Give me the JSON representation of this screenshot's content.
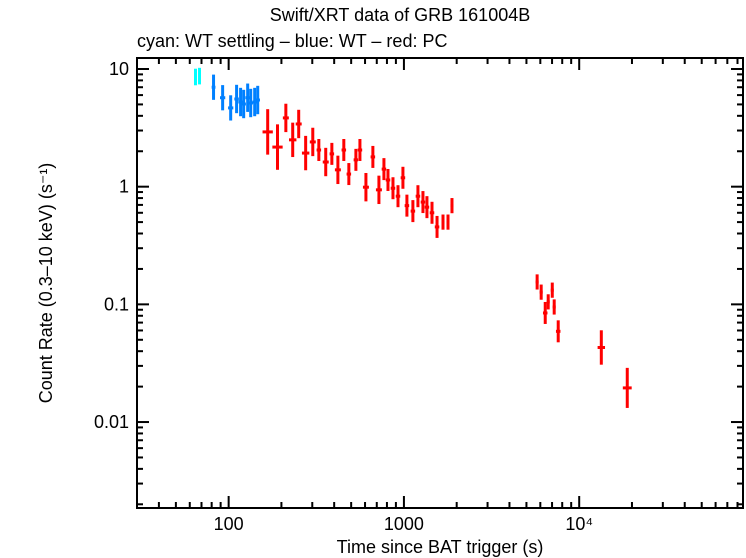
{
  "chart_data": {
    "type": "scatter",
    "title": "Swift/XRT data of GRB 161004B",
    "subtitle": "cyan: WT settling – blue: WT – red: PC",
    "xlabel": "Time since BAT trigger (s)",
    "ylabel": "Count Rate (0.3–10 keV) (s⁻¹)",
    "xscale": "log",
    "yscale": "log",
    "xlim": [
      30,
      86000
    ],
    "ylim": [
      0.00186,
      12.4
    ],
    "grid": false,
    "x_ticks": [
      {
        "value": 100,
        "label": "100"
      },
      {
        "value": 1000,
        "label": "1000"
      },
      {
        "value": 10000,
        "label": "10⁴"
      }
    ],
    "y_ticks": [
      {
        "value": 10,
        "label": "10"
      },
      {
        "value": 1,
        "label": "1"
      },
      {
        "value": 0.1,
        "label": "0.1"
      },
      {
        "value": 0.01,
        "label": "0.01"
      }
    ],
    "series": [
      {
        "mode": "WT settling",
        "color": "#00ffff",
        "points": [
          [
            64.7,
            8.55,
            1.3,
            2.2
          ],
          [
            68.2,
            8.7,
            1.3,
            2.2
          ]
        ]
      },
      {
        "mode": "WT",
        "color": "#0080ff",
        "points": [
          [
            82,
            7.0,
            2.5,
            3.5
          ],
          [
            92.4,
            5.7,
            3.5,
            3.5
          ],
          [
            102.7,
            4.67,
            3.5,
            3.5
          ],
          [
            111,
            5.56,
            3,
            4
          ],
          [
            117,
            5.24,
            3,
            4
          ],
          [
            121.8,
            5.04,
            3,
            4
          ],
          [
            128.4,
            5.7,
            3,
            4
          ],
          [
            133.6,
            5.14,
            3,
            4
          ],
          [
            140.8,
            5.24,
            3,
            4
          ],
          [
            146.5,
            5.45,
            3,
            4
          ]
        ]
      },
      {
        "mode": "PC",
        "color": "#ff0000",
        "points": [
          [
            167,
            2.92,
            7,
            7
          ],
          [
            190,
            2.17,
            7,
            7
          ],
          [
            212,
            3.84,
            4,
            4
          ],
          [
            232,
            2.5,
            5,
            5
          ],
          [
            251,
            3.41,
            4,
            4
          ],
          [
            275,
            1.93,
            5,
            5
          ],
          [
            302,
            2.4,
            4,
            4
          ],
          [
            327,
            2.05,
            3,
            3
          ],
          [
            358,
            1.62,
            4,
            4
          ],
          [
            388,
            1.9,
            3,
            3
          ],
          [
            420,
            1.39,
            4,
            4
          ],
          [
            454,
            2.05,
            3,
            3
          ],
          [
            485,
            1.28,
            3,
            3
          ],
          [
            532,
            1.69,
            3,
            3
          ],
          [
            561,
            2.05,
            3,
            3
          ],
          [
            607,
            0.99,
            4,
            4
          ],
          [
            665,
            1.79,
            3,
            3
          ],
          [
            720,
            0.94,
            4,
            4
          ],
          [
            769,
            1.41,
            3,
            3
          ],
          [
            811,
            1.14,
            3,
            3
          ],
          [
            866,
            0.97,
            3,
            3
          ],
          [
            925,
            0.83,
            3,
            3
          ],
          [
            987,
            1.19,
            3,
            3
          ],
          [
            1040,
            0.69,
            3,
            3
          ],
          [
            1125,
            0.62,
            3,
            3
          ],
          [
            1202,
            0.83,
            3,
            3
          ],
          [
            1284,
            0.74,
            3,
            3
          ],
          [
            1353,
            0.67,
            3,
            3
          ],
          [
            1446,
            0.6,
            3,
            3
          ],
          [
            1545,
            0.455,
            3,
            3
          ],
          [
            1671,
            0.5,
            2,
            2
          ],
          [
            1784,
            0.5,
            2,
            2
          ],
          [
            1880,
            0.69,
            2,
            2
          ],
          [
            5754,
            0.155,
            2,
            2
          ],
          [
            6068,
            0.127,
            2,
            2
          ],
          [
            6400,
            0.0845,
            3,
            3
          ],
          [
            6655,
            0.105,
            2,
            2
          ],
          [
            7020,
            0.132,
            2,
            2
          ],
          [
            7200,
            0.095,
            2,
            2
          ],
          [
            7590,
            0.059,
            3,
            3
          ],
          [
            13370,
            0.043,
            5,
            5
          ],
          [
            18800,
            0.0195,
            6,
            6
          ]
        ]
      }
    ]
  }
}
